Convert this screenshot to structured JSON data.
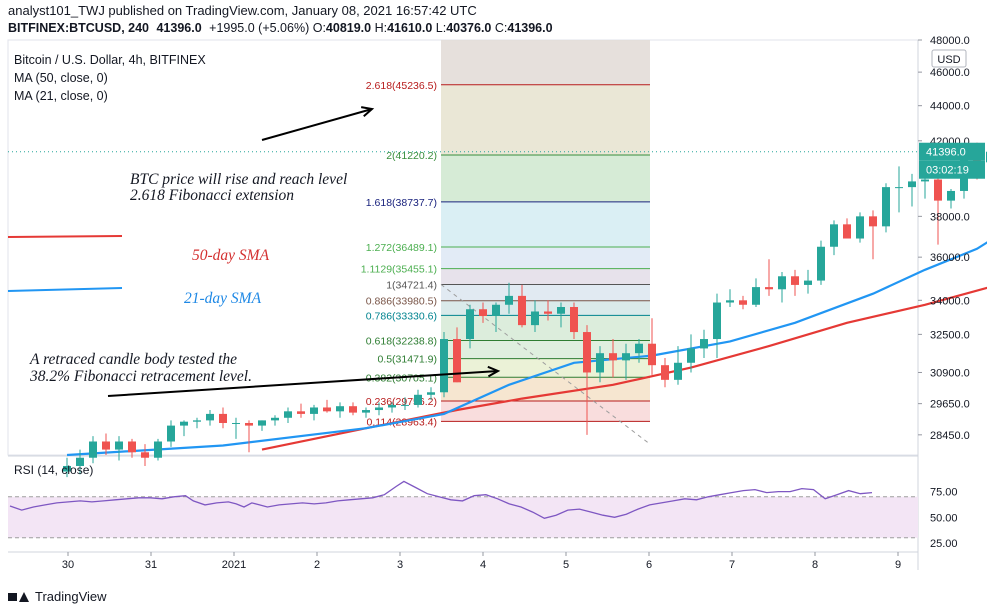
{
  "header": {
    "line1": "analyst101_TWJ published on TradingView.com, January 08, 2021 16:57:42 UTC",
    "symbol": "BITFINEX:BTCUSD, 240",
    "close": "41396.0",
    "change": "+1995.0 (+5.06%)",
    "o_label": "O:",
    "o": "40819.0",
    "h_label": "H:",
    "h": "41610.0",
    "l_label": "L:",
    "l": "40376.0",
    "c_label": "C:",
    "c": "41396.0"
  },
  "legend": {
    "title": "Bitcoin / U.S. Dollar, 4h, BITFINEX",
    "ma50": "MA (50, close, 0)",
    "ma21": "MA (21, close, 0)"
  },
  "currency_badge": "USD",
  "price_label": "41396.0",
  "countdown_label": "03:02:19",
  "rsi_label": "RSI (14, close)",
  "footer": {
    "brand": "TradingView"
  },
  "colors": {
    "up": "#26a69a",
    "down": "#ef5350",
    "ma50": "#e53935",
    "ma21": "#2196f3",
    "rsi": "#7e57c2",
    "rsi_band": "#f3e5f5",
    "price_badge": "#26a69a",
    "annotation_red": "#d32f2f",
    "annotation_blue": "#1e88e5"
  },
  "chart_data": [
    {
      "type": "candlestick",
      "title": "Bitcoin / U.S. Dollar, 4h, BITFINEX",
      "x_ticks": [
        "30",
        "31",
        "2021",
        "2",
        "3",
        "4",
        "5",
        "6",
        "7",
        "8",
        "9"
      ],
      "y_ticks": [
        48000.0,
        46000.0,
        44000.0,
        42000.0,
        38000.0,
        36000.0,
        34000.0,
        32500.0,
        30900.0,
        29650.0,
        28450.0
      ],
      "y_tick_labels": [
        "48000.0",
        "46000.0",
        "44000.0",
        "42000.0",
        "38000.0",
        "36000.0",
        "34000.0",
        "32500.0",
        "30900.0",
        "29650.0",
        "28450.0"
      ],
      "scale": "log",
      "candles": [
        {
          "o": 27100,
          "h": 27600,
          "l": 26900,
          "c": 27300
        },
        {
          "o": 27300,
          "h": 27900,
          "l": 27000,
          "c": 27600
        },
        {
          "o": 27600,
          "h": 28400,
          "l": 27400,
          "c": 28200
        },
        {
          "o": 28200,
          "h": 28500,
          "l": 27700,
          "c": 27900
        },
        {
          "o": 27900,
          "h": 28400,
          "l": 27500,
          "c": 28200
        },
        {
          "o": 28200,
          "h": 28300,
          "l": 27600,
          "c": 27800
        },
        {
          "o": 27800,
          "h": 28100,
          "l": 27300,
          "c": 27600
        },
        {
          "o": 27600,
          "h": 28300,
          "l": 27500,
          "c": 28200
        },
        {
          "o": 28200,
          "h": 29000,
          "l": 28000,
          "c": 28800
        },
        {
          "o": 28800,
          "h": 29000,
          "l": 28400,
          "c": 28950
        },
        {
          "o": 28950,
          "h": 29100,
          "l": 28700,
          "c": 29000
        },
        {
          "o": 29000,
          "h": 29400,
          "l": 28800,
          "c": 29250
        },
        {
          "o": 29250,
          "h": 29500,
          "l": 28700,
          "c": 28900
        },
        {
          "o": 28900,
          "h": 29100,
          "l": 28300,
          "c": 28900
        },
        {
          "o": 28900,
          "h": 29000,
          "l": 27800,
          "c": 28800
        },
        {
          "o": 28800,
          "h": 29000,
          "l": 28600,
          "c": 29000
        },
        {
          "o": 29000,
          "h": 29200,
          "l": 28800,
          "c": 29100
        },
        {
          "o": 29100,
          "h": 29500,
          "l": 28900,
          "c": 29350
        },
        {
          "o": 29350,
          "h": 29650,
          "l": 29100,
          "c": 29250
        },
        {
          "o": 29250,
          "h": 29600,
          "l": 29000,
          "c": 29500
        },
        {
          "o": 29500,
          "h": 29800,
          "l": 29300,
          "c": 29350
        },
        {
          "o": 29350,
          "h": 29700,
          "l": 29100,
          "c": 29550
        },
        {
          "o": 29550,
          "h": 29700,
          "l": 29200,
          "c": 29300
        },
        {
          "o": 29300,
          "h": 29500,
          "l": 29100,
          "c": 29400
        },
        {
          "o": 29400,
          "h": 29700,
          "l": 29200,
          "c": 29500
        },
        {
          "o": 29500,
          "h": 29700,
          "l": 29300,
          "c": 29600
        },
        {
          "o": 29600,
          "h": 29900,
          "l": 29400,
          "c": 29600
        },
        {
          "o": 29600,
          "h": 30200,
          "l": 29500,
          "c": 30000
        },
        {
          "o": 30000,
          "h": 30300,
          "l": 29800,
          "c": 30100
        },
        {
          "o": 30100,
          "h": 32600,
          "l": 29900,
          "c": 32300
        },
        {
          "o": 32300,
          "h": 32800,
          "l": 30500,
          "c": 30500
        },
        {
          "o": 32300,
          "h": 33800,
          "l": 31900,
          "c": 33600
        },
        {
          "o": 33600,
          "h": 33900,
          "l": 33000,
          "c": 33300
        },
        {
          "o": 33300,
          "h": 33900,
          "l": 32600,
          "c": 33800
        },
        {
          "o": 33800,
          "h": 34800,
          "l": 33400,
          "c": 34200
        },
        {
          "o": 34200,
          "h": 34700,
          "l": 32800,
          "c": 32900
        },
        {
          "o": 32900,
          "h": 34000,
          "l": 32600,
          "c": 33500
        },
        {
          "o": 33500,
          "h": 34000,
          "l": 33100,
          "c": 33400
        },
        {
          "o": 33400,
          "h": 33900,
          "l": 32800,
          "c": 33700
        },
        {
          "o": 33700,
          "h": 33900,
          "l": 32300,
          "c": 32600
        },
        {
          "o": 32600,
          "h": 32900,
          "l": 28450,
          "c": 30900
        },
        {
          "o": 30900,
          "h": 32000,
          "l": 30500,
          "c": 31700
        },
        {
          "o": 31700,
          "h": 32300,
          "l": 30700,
          "c": 31400
        },
        {
          "o": 31400,
          "h": 32100,
          "l": 30600,
          "c": 31700
        },
        {
          "o": 31700,
          "h": 32300,
          "l": 31300,
          "c": 32100
        },
        {
          "o": 32100,
          "h": 33200,
          "l": 30800,
          "c": 31200
        },
        {
          "o": 31200,
          "h": 31500,
          "l": 30300,
          "c": 30600
        },
        {
          "o": 30600,
          "h": 32000,
          "l": 30400,
          "c": 31300
        },
        {
          "o": 31300,
          "h": 32500,
          "l": 30900,
          "c": 31900
        },
        {
          "o": 31900,
          "h": 32700,
          "l": 31500,
          "c": 32300
        },
        {
          "o": 32300,
          "h": 34300,
          "l": 31500,
          "c": 33900
        },
        {
          "o": 33900,
          "h": 34500,
          "l": 33700,
          "c": 34000
        },
        {
          "o": 34000,
          "h": 34200,
          "l": 33600,
          "c": 33800
        },
        {
          "o": 33800,
          "h": 35000,
          "l": 33700,
          "c": 34600
        },
        {
          "o": 34600,
          "h": 35900,
          "l": 34200,
          "c": 34500
        },
        {
          "o": 34500,
          "h": 35300,
          "l": 33900,
          "c": 35100
        },
        {
          "o": 35100,
          "h": 35400,
          "l": 34200,
          "c": 34700
        },
        {
          "o": 34700,
          "h": 35400,
          "l": 34300,
          "c": 34900
        },
        {
          "o": 34900,
          "h": 36800,
          "l": 34700,
          "c": 36500
        },
        {
          "o": 36500,
          "h": 37800,
          "l": 36100,
          "c": 37600
        },
        {
          "o": 37600,
          "h": 37900,
          "l": 36900,
          "c": 36900
        },
        {
          "o": 36900,
          "h": 38200,
          "l": 36700,
          "c": 38000
        },
        {
          "o": 38000,
          "h": 38300,
          "l": 35900,
          "c": 37500
        },
        {
          "o": 37500,
          "h": 39700,
          "l": 37200,
          "c": 39500
        },
        {
          "o": 39500,
          "h": 40600,
          "l": 38200,
          "c": 39500
        },
        {
          "o": 39500,
          "h": 40200,
          "l": 38500,
          "c": 39800
        },
        {
          "o": 39800,
          "h": 40600,
          "l": 38900,
          "c": 39900
        },
        {
          "o": 39900,
          "h": 40200,
          "l": 36600,
          "c": 38800
        },
        {
          "o": 38800,
          "h": 39400,
          "l": 38400,
          "c": 39300
        },
        {
          "o": 39300,
          "h": 41600,
          "l": 38900,
          "c": 41400
        },
        {
          "o": 41400,
          "h": 41900,
          "l": 39900,
          "c": 40800
        },
        {
          "o": 40819,
          "h": 41610,
          "l": 40376,
          "c": 41396
        }
      ],
      "ma21": [
        [
          0,
          27700
        ],
        [
          12,
          28050
        ],
        [
          23,
          28700
        ],
        [
          29,
          29250
        ],
        [
          34,
          30400
        ],
        [
          39,
          31300
        ],
        [
          45,
          31600
        ],
        [
          51,
          32200
        ],
        [
          56,
          33000
        ],
        [
          62,
          34300
        ],
        [
          66,
          35400
        ],
        [
          70,
          36400
        ],
        [
          71,
          36800
        ]
      ],
      "ma50": [
        [
          15,
          27900
        ],
        [
          24,
          28800
        ],
        [
          30,
          29400
        ],
        [
          35,
          29850
        ],
        [
          42,
          30400
        ],
        [
          48,
          31100
        ],
        [
          54,
          32000
        ],
        [
          60,
          33000
        ],
        [
          66,
          33800
        ],
        [
          71,
          34600
        ]
      ],
      "fibonacci": [
        {
          "level": "0.114",
          "price": 28963.4,
          "label": "0.114(28963.4)"
        },
        {
          "level": "0.236",
          "price": 29756.2,
          "label": "0.236(29756.2)"
        },
        {
          "level": "0.382",
          "price": 30705.1,
          "label": "0.382(30705.1)"
        },
        {
          "level": "0.5",
          "price": 31471.9,
          "label": "0.5(31471.9)"
        },
        {
          "level": "0.618",
          "price": 32238.8,
          "label": "0.618(32238.8)"
        },
        {
          "level": "0.786",
          "price": 33330.6,
          "label": "0.786(33330.6)"
        },
        {
          "level": "0.886",
          "price": 33980.5,
          "label": "0.886(33980.5)"
        },
        {
          "level": "1",
          "price": 34721.4,
          "label": "1(34721.4)"
        },
        {
          "level": "1.1129",
          "price": 35455.1,
          "label": "1.1129(35455.1)"
        },
        {
          "level": "1.272",
          "price": 36489.1,
          "label": "1.272(36489.1)"
        },
        {
          "level": "1.618",
          "price": 38737.7,
          "label": "1.618(38737.7)"
        },
        {
          "level": "2",
          "price": 41220.2,
          "label": "2(41220.2)"
        },
        {
          "level": "2.618",
          "price": 45236.5,
          "label": "2.618(45236.5)"
        }
      ],
      "annotations": [
        "BTC price will rise and reach level",
        "2.618 Fibonacci extension",
        "50-day SMA",
        "21-day SMA",
        "A retraced candle body tested the",
        "38.2% Fibonacci retracement level."
      ],
      "current_price": 41396.0
    },
    {
      "type": "line",
      "title": "RSI (14, close)",
      "y_ticks": [
        75.0,
        50.0,
        25.0
      ],
      "y_tick_labels": [
        "75.00",
        "50.00",
        "25.00"
      ],
      "band": [
        30,
        70
      ],
      "values": [
        [
          0,
          61
        ],
        [
          3,
          57
        ],
        [
          6,
          60
        ],
        [
          9,
          62
        ],
        [
          12,
          64
        ],
        [
          15,
          65
        ],
        [
          18,
          66
        ],
        [
          21,
          65
        ],
        [
          24,
          66
        ],
        [
          27,
          67
        ],
        [
          30,
          68
        ],
        [
          33,
          69
        ],
        [
          36,
          69
        ],
        [
          39,
          68
        ],
        [
          42,
          70
        ],
        [
          45,
          71
        ],
        [
          47,
          66
        ],
        [
          50,
          62
        ],
        [
          53,
          64
        ],
        [
          56,
          65
        ],
        [
          58,
          63
        ],
        [
          60,
          60
        ],
        [
          62,
          64
        ],
        [
          64,
          62
        ],
        [
          66,
          60
        ],
        [
          69,
          62
        ],
        [
          72,
          63
        ],
        [
          75,
          64
        ],
        [
          78,
          63
        ],
        [
          81,
          64
        ],
        [
          84,
          66
        ],
        [
          87,
          67
        ],
        [
          90,
          68
        ],
        [
          93,
          69
        ],
        [
          96,
          72
        ],
        [
          99,
          80
        ],
        [
          101,
          85
        ],
        [
          104,
          79
        ],
        [
          107,
          73
        ],
        [
          110,
          70
        ],
        [
          113,
          67
        ],
        [
          116,
          66
        ],
        [
          119,
          71
        ],
        [
          122,
          72
        ],
        [
          125,
          68
        ],
        [
          128,
          63
        ],
        [
          131,
          60
        ],
        [
          134,
          55
        ],
        [
          137,
          49
        ],
        [
          140,
          52
        ],
        [
          143,
          57
        ],
        [
          146,
          58
        ],
        [
          149,
          55
        ],
        [
          152,
          52
        ],
        [
          155,
          50
        ],
        [
          158,
          53
        ],
        [
          161,
          58
        ],
        [
          164,
          62
        ],
        [
          167,
          64
        ],
        [
          170,
          66
        ],
        [
          173,
          68
        ],
        [
          176,
          67
        ],
        [
          179,
          70
        ],
        [
          182,
          72
        ],
        [
          185,
          74
        ],
        [
          188,
          76
        ],
        [
          191,
          77
        ],
        [
          194,
          74
        ],
        [
          197,
          75
        ],
        [
          200,
          75
        ],
        [
          203,
          78
        ],
        [
          206,
          77
        ],
        [
          209,
          68
        ],
        [
          212,
          72
        ],
        [
          215,
          76
        ],
        [
          218,
          73
        ],
        [
          221,
          74
        ]
      ]
    }
  ]
}
